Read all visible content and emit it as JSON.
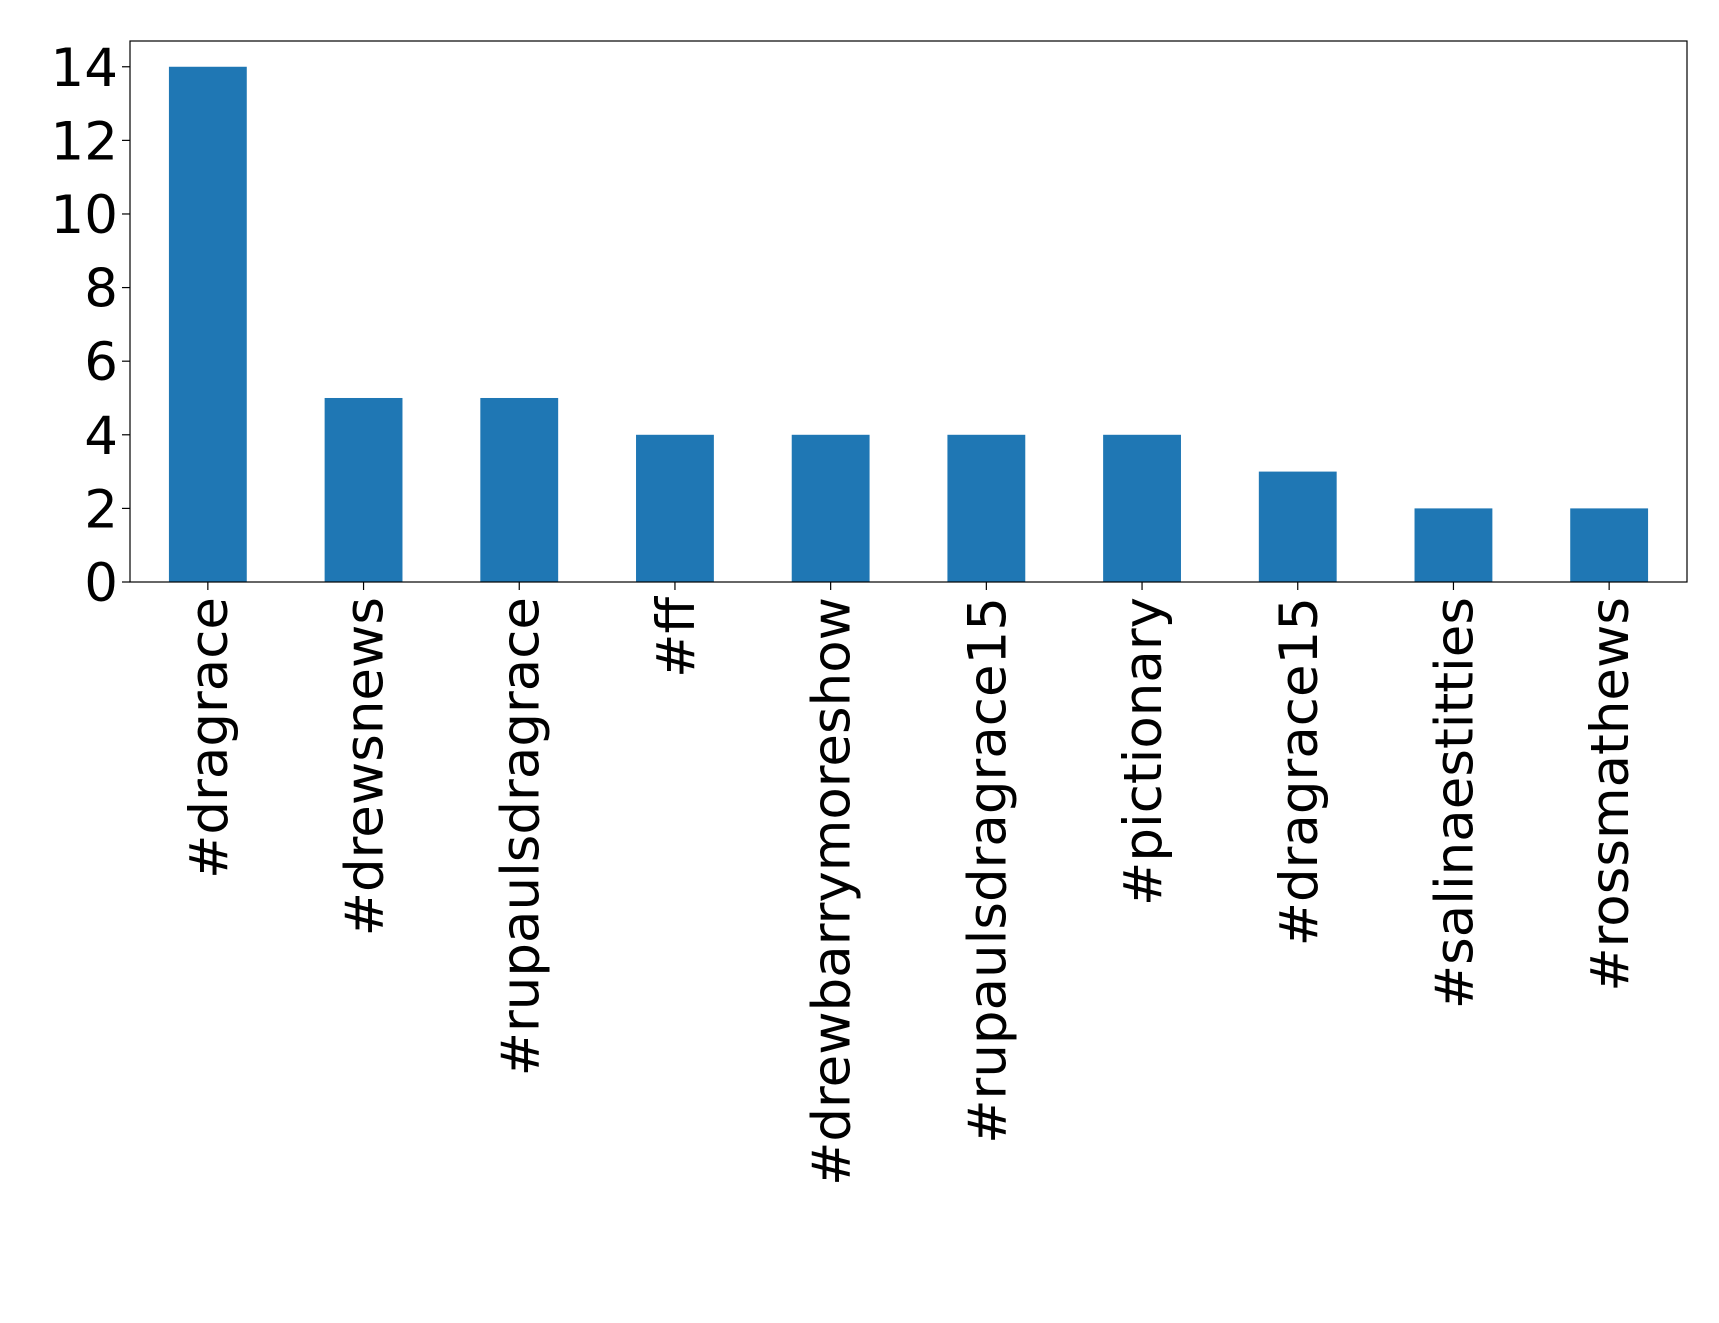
{
  "chart_data": {
    "type": "bar",
    "categories": [
      "#dragrace",
      "#drewsnews",
      "#rupaulsdragrace",
      "#ff",
      "#drewbarrymoreshow",
      "#rupaulsdragrace15",
      "#pictionary",
      "#dragrace15",
      "#salinaestitties",
      "#rossmathews"
    ],
    "values": [
      14,
      5,
      5,
      4,
      4,
      4,
      4,
      3,
      2,
      2
    ],
    "color": "#1f77b4",
    "ylim": [
      0,
      14.7
    ],
    "yticks": [
      0,
      2,
      4,
      6,
      8,
      10,
      12,
      14
    ],
    "grid": false
  }
}
